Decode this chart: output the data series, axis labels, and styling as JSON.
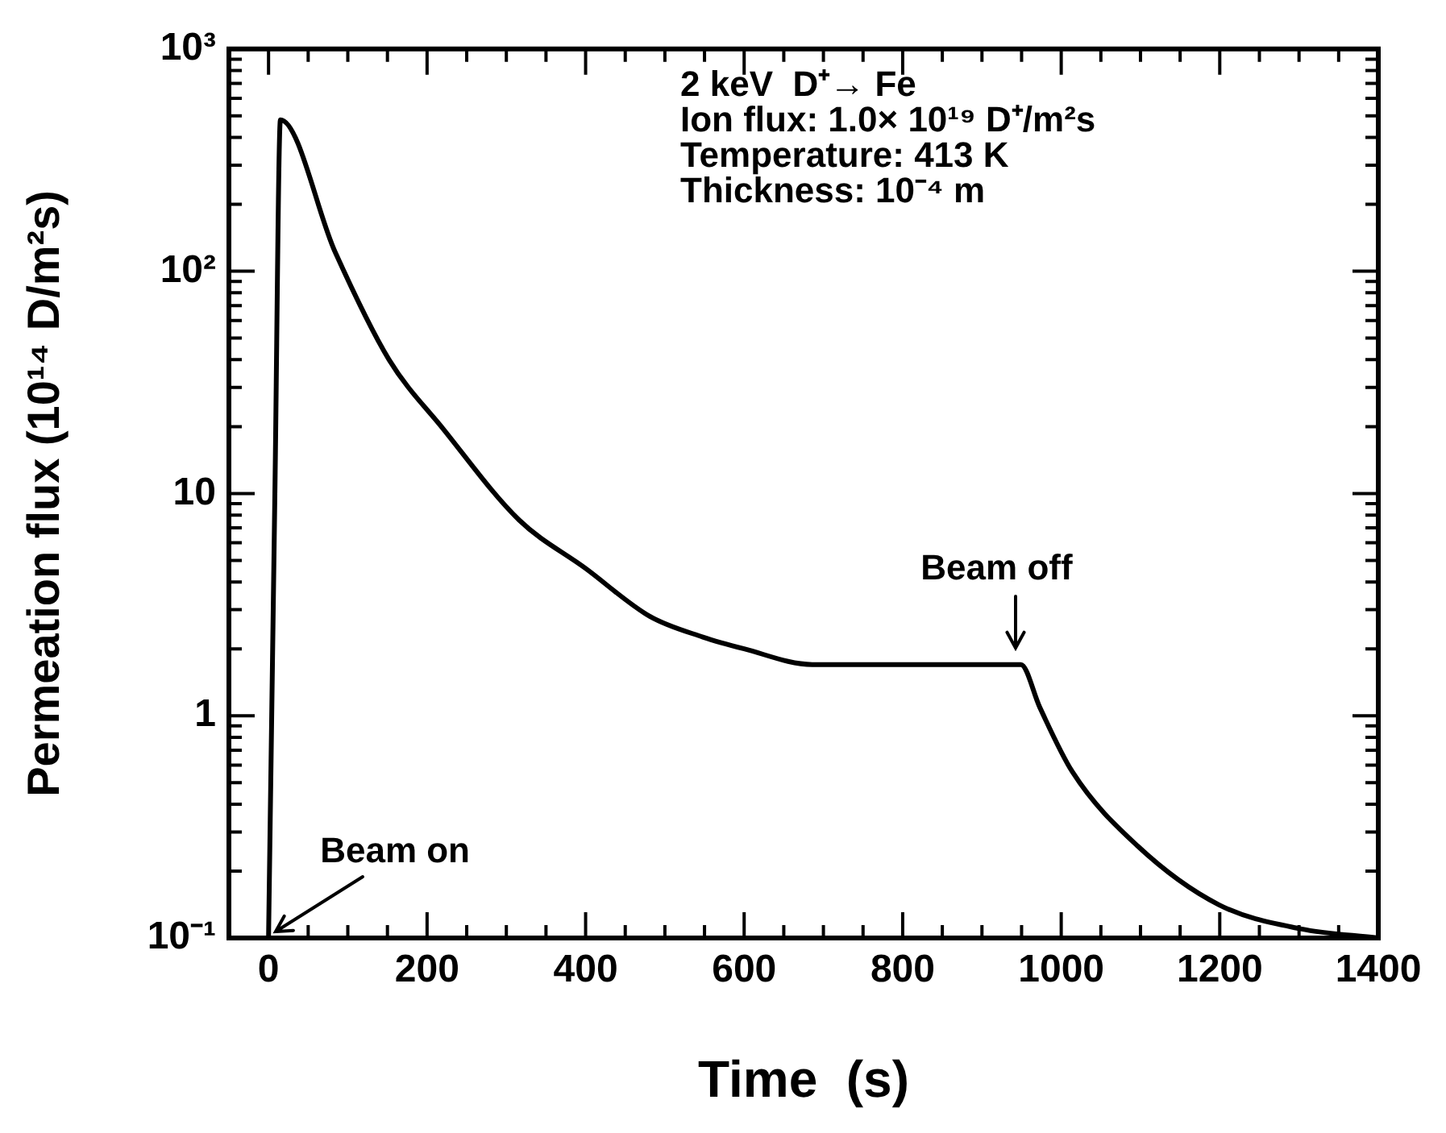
{
  "chart_data": {
    "type": "line",
    "xlabel": "Time  (s)",
    "ylabel": "Permeation flux (10¹⁴ D/m²s)",
    "log": "y",
    "grid": false,
    "legend": false,
    "marker": "none",
    "line_style": "solid",
    "xlim": [
      -50,
      1400
    ],
    "xticks": [
      0,
      200,
      400,
      600,
      800,
      1000,
      1200,
      1400
    ],
    "ylim": [
      0.1,
      1000
    ],
    "yticks": [
      {
        "value": 0.1,
        "label": "10⁻¹"
      },
      1,
      10,
      {
        "value": 100,
        "label": "10²"
      },
      {
        "value": 1000,
        "label": "10³"
      }
    ],
    "series": [
      {
        "color": "#000000",
        "x": [
          0,
          8,
          15,
          84,
          152,
          220,
          316,
          400,
          481,
          548,
          600,
          686,
          800,
          949,
          973,
          1014,
          1096,
          1199,
          1302,
          1400
        ],
        "values": [
          0.1,
          10,
          480,
          122,
          40,
          19.6,
          7.6,
          4.6,
          2.8,
          2.26,
          2.0,
          1.7,
          1.7,
          1.7,
          1.09,
          0.56,
          0.26,
          0.141,
          0.11,
          0.1
        ]
      }
    ],
    "annotations": [
      "2 keV  D⁺→ Fe",
      "Ion flux: 1.0× 10¹⁹ D⁺/m²s",
      "Temperature: 413 K",
      "Thickness: 10⁻⁴ m",
      {
        "text": "Beam off",
        "x": 949,
        "y": 1.7
      },
      {
        "text": "Beam on",
        "x": 0,
        "y": 0.1
      }
    ]
  }
}
